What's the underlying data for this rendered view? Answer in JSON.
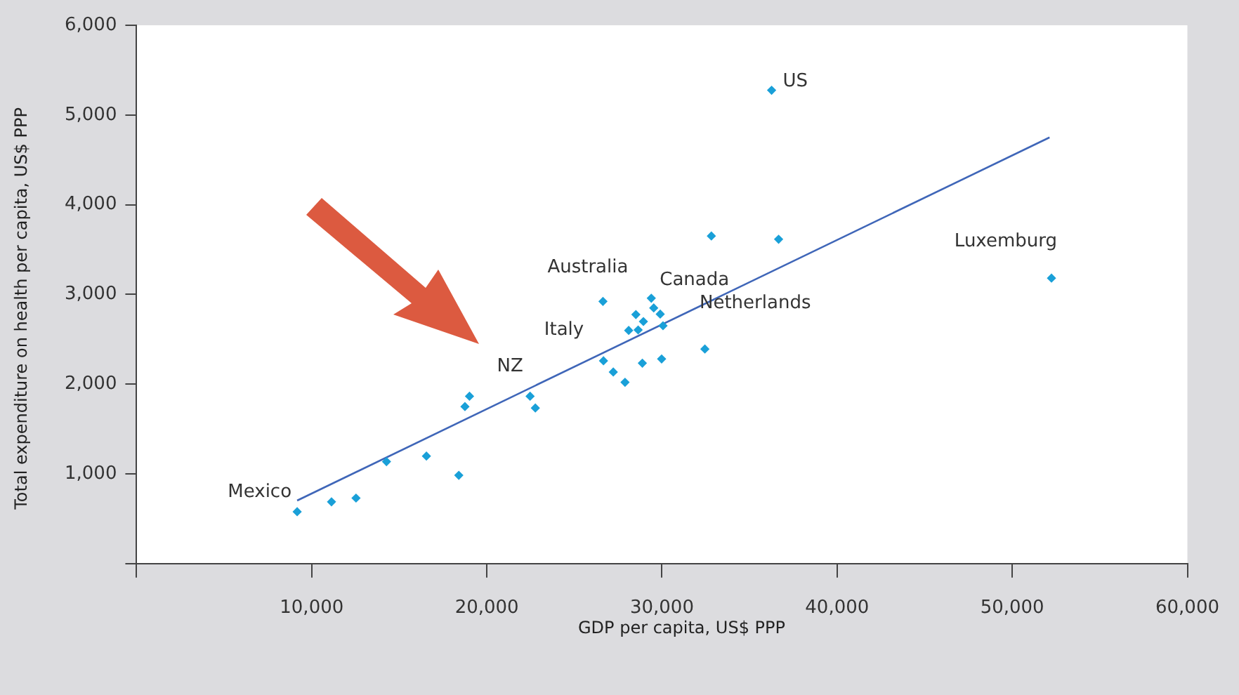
{
  "chart_data": {
    "type": "scatter",
    "xlabel": "GDP per capita, US$ PPP",
    "ylabel": "Total expenditure on health per capita, US$ PPP",
    "grid": false,
    "legend": false,
    "xlim": [
      0,
      60000
    ],
    "xticks": [
      {
        "value": 0,
        "label": null
      },
      {
        "value": 10000,
        "label": "10,000"
      },
      {
        "value": 20000,
        "label": "20,000"
      },
      {
        "value": 30000,
        "label": "30,000"
      },
      {
        "value": 40000,
        "label": "40,000"
      },
      {
        "value": 50000,
        "label": "50,000"
      },
      {
        "value": 60000,
        "label": "60,000"
      }
    ],
    "ylim": [
      0,
      6000
    ],
    "yticks": [
      {
        "value": 0,
        "label": null
      },
      {
        "value": 1000,
        "label": "1,000"
      },
      {
        "value": 2000,
        "label": "2,000"
      },
      {
        "value": 3000,
        "label": "3,000"
      },
      {
        "value": 4000,
        "label": "4,000"
      },
      {
        "value": 5000,
        "label": "5,000"
      },
      {
        "value": 6000,
        "label": "6,000"
      }
    ],
    "series": [
      {
        "type": "scatter",
        "marker": "diamond",
        "color": "#1aa0d8",
        "x": [
          9170,
          11130,
          12530,
          14270,
          16550,
          18400,
          18750,
          19010,
          22470,
          22770,
          26630,
          29390,
          29530,
          28510,
          29900,
          28940,
          28100,
          28640,
          30060,
          26660,
          27220,
          27890,
          28880,
          29980,
          32450,
          32820,
          36660,
          36260,
          52240
        ],
        "values": [
          578,
          688,
          730,
          1136,
          1198,
          984,
          1750,
          1865,
          1865,
          1734,
          2922,
          2958,
          2849,
          2776,
          2781,
          2698,
          2599,
          2604,
          2651,
          2260,
          2135,
          2021,
          2234,
          2281,
          2391,
          3651,
          3615,
          5276,
          3182
        ]
      },
      {
        "type": "line",
        "marker": "none",
        "color": "#3f66b8",
        "x": [
          9170,
          52130
        ],
        "values": [
          703,
          4750
        ]
      }
    ],
    "annotations": [
      {
        "text": "Mexico",
        "x": 9170,
        "y": 578
      },
      {
        "text": "NZ",
        "x": 22470,
        "y": 1865
      },
      {
        "text": "Italy",
        "x": 26660,
        "y": 2260
      },
      {
        "text": "Australia",
        "x": 26630,
        "y": 2922
      },
      {
        "text": "Canada",
        "x": 29390,
        "y": 2958
      },
      {
        "text": "Netherlands",
        "x": 30060,
        "y": 2651
      },
      {
        "text": "US",
        "x": 36260,
        "y": 5276
      },
      {
        "text": "Luxemburg",
        "x": 52240,
        "y": 3182
      }
    ]
  }
}
